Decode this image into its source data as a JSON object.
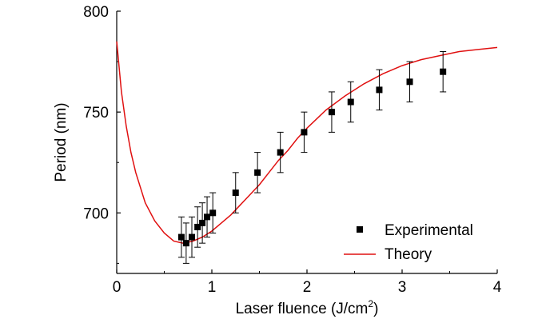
{
  "chart_data": {
    "type": "scatter",
    "title": "",
    "xlabel": "Laser fluence (J/cm",
    "xlabel_sup": "2",
    "xlabel_end": ")",
    "ylabel": "Period (nm)",
    "xlim": [
      0,
      4
    ],
    "ylim": [
      670,
      800
    ],
    "x_ticks": [
      0,
      1,
      2,
      3,
      4
    ],
    "y_ticks": [
      700,
      750,
      800
    ],
    "grid": false,
    "legend_position": "bottom-right",
    "series": [
      {
        "name": "Experimental",
        "kind": "points-with-error-bars",
        "color": "#000000",
        "x": [
          0.68,
          0.73,
          0.79,
          0.85,
          0.9,
          0.95,
          1.01,
          1.25,
          1.48,
          1.72,
          1.97,
          2.26,
          2.46,
          2.76,
          3.08,
          3.43
        ],
        "y": [
          688,
          685,
          688,
          693,
          695,
          698,
          700,
          710,
          720,
          730,
          740,
          750,
          755,
          761,
          765,
          770
        ],
        "y_err": [
          10,
          10,
          10,
          10,
          10,
          10,
          10,
          10,
          10,
          10,
          10,
          10,
          10,
          10,
          10,
          10
        ]
      },
      {
        "name": "Theory",
        "kind": "line",
        "color": "#e01010",
        "x": [
          0.0,
          0.05,
          0.1,
          0.15,
          0.2,
          0.3,
          0.4,
          0.5,
          0.6,
          0.7,
          0.8,
          0.9,
          1.0,
          1.1,
          1.2,
          1.3,
          1.4,
          1.5,
          1.6,
          1.7,
          1.8,
          1.9,
          2.0,
          2.2,
          2.4,
          2.6,
          2.8,
          3.0,
          3.2,
          3.4,
          3.6,
          3.8,
          4.0
        ],
        "y": [
          785,
          760,
          743,
          730,
          720,
          705,
          696,
          690,
          686,
          685,
          686,
          688,
          691,
          695,
          699,
          704,
          709,
          714,
          720,
          726,
          731,
          737,
          742,
          751,
          758,
          764,
          769,
          773,
          776,
          778,
          780,
          781,
          782
        ]
      }
    ]
  }
}
